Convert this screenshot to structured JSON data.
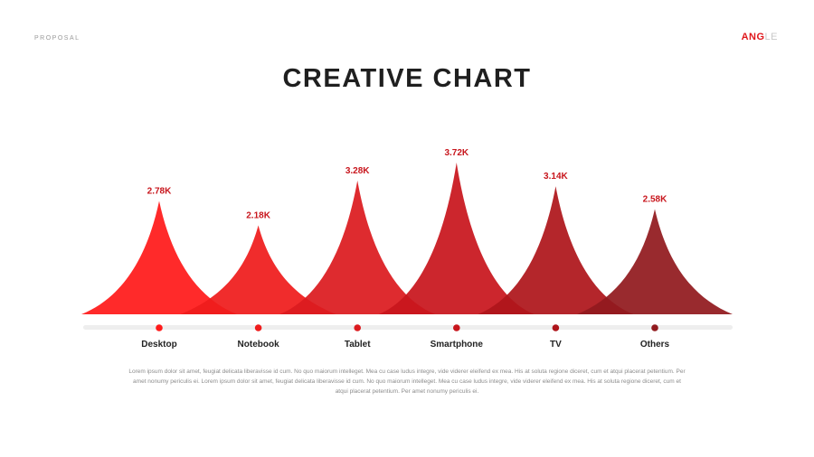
{
  "header": {
    "left_label": "PROPOSAL",
    "brand_bold": "ANG",
    "brand_light": "LE"
  },
  "title": "CREATIVE CHART",
  "description": "Lorem ipsum dolor sit amet, feugiat delicata liberavisse id cum. No quo maiorum intelleget. Mea cu case ludus integre, vide viderer eleifend ex mea. His at soluta regione diceret, cum et atqui placerat petentium. Per amet nonumy periculis ei. Lorem ipsum dolor sit amet, feugiat delicata liberavisse id cum. No quo maiorum intelleget. Mea cu case ludus integre, vide viderer eleifend ex mea. His at soluta regione diceret, cum et atqui placerat petentium. Per amet nonumy periculis ei.",
  "chart_data": {
    "type": "area",
    "categories": [
      "Desktop",
      "Notebook",
      "Tablet",
      "Smartphone",
      "TV",
      "Others"
    ],
    "values": [
      2.78,
      2.18,
      3.28,
      3.72,
      3.14,
      2.58
    ],
    "data_labels": [
      "2.78K",
      "2.18K",
      "3.28K",
      "3.72K",
      "3.14K",
      "2.58K"
    ],
    "colors": [
      "#ff1a1a",
      "#ef1c1c",
      "#dc1b1f",
      "#c8161d",
      "#ae151b",
      "#911a1e"
    ],
    "ylim": [
      0,
      3.72
    ],
    "grid": false
  }
}
